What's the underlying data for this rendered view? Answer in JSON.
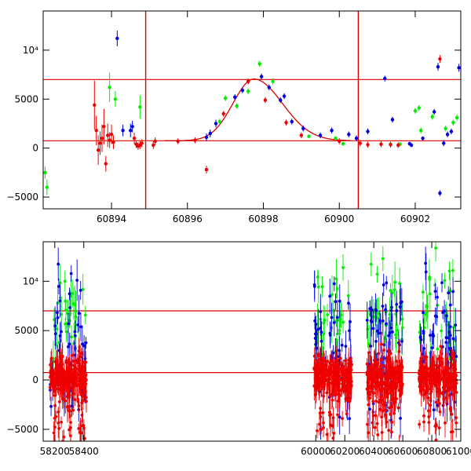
{
  "colors": {
    "green": "#00ee00",
    "blue": "#0000dd",
    "red": "#ee0000",
    "axis": "#000000",
    "marker": "#dd0000"
  },
  "chart_data": [
    {
      "type": "scatter",
      "name": "zoomed-light-curve",
      "xlim": [
        60892.2,
        60903.2
      ],
      "ylim": [
        -6200,
        14000
      ],
      "xticks": [
        60894,
        60896,
        60898,
        60900,
        60902
      ],
      "xtick_labels": [
        "60894",
        "60896",
        "60898",
        "60900",
        "60902"
      ],
      "yticks": [
        -5000,
        0,
        5000,
        10000
      ],
      "ytick_labels": [
        "−5000",
        "0",
        "5000",
        "10⁴"
      ],
      "hlines": [
        7000,
        750
      ],
      "vlines": [
        60894.9,
        60900.5
      ],
      "model_curve": {
        "baseline": 750,
        "peak": 6300,
        "center": 60897.75,
        "sigma_left": 0.55,
        "sigma_right": 0.75
      },
      "series": [
        {
          "name": "green",
          "color": "#00ee00",
          "points": [
            [
              60892.25,
              -2500,
              600
            ],
            [
              60892.3,
              -4000,
              800
            ],
            [
              60893.95,
              6200,
              1500
            ],
            [
              60894.1,
              5000,
              800
            ],
            [
              60894.75,
              4200,
              1200
            ],
            [
              60896.6,
              1500,
              300
            ],
            [
              60896.85,
              2700,
              300
            ],
            [
              60897.0,
              5100,
              300
            ],
            [
              60897.3,
              4300,
              300
            ],
            [
              60897.6,
              5800,
              300
            ],
            [
              60897.9,
              8600,
              300
            ],
            [
              60898.25,
              6800,
              300
            ],
            [
              60899.2,
              1200,
              200
            ],
            [
              60899.9,
              1000,
              200
            ],
            [
              60900.1,
              450,
              200
            ],
            [
              60901.35,
              400,
              200
            ],
            [
              60901.6,
              400,
              200
            ],
            [
              60902.0,
              3800,
              300
            ],
            [
              60902.1,
              4100,
              300
            ],
            [
              60902.15,
              1800,
              300
            ],
            [
              60902.45,
              3200,
              300
            ],
            [
              60902.8,
              2000,
              300
            ],
            [
              60903.0,
              2600,
              300
            ],
            [
              60903.1,
              3100,
              300
            ]
          ]
        },
        {
          "name": "blue",
          "color": "#0000dd",
          "points": [
            [
              60894.15,
              11200,
              800
            ],
            [
              60894.3,
              1800,
              600
            ],
            [
              60894.5,
              1800,
              700
            ],
            [
              60894.55,
              2200,
              600
            ],
            [
              60896.5,
              1100,
              400
            ],
            [
              60896.6,
              1500,
              400
            ],
            [
              60896.75,
              2500,
              400
            ],
            [
              60897.25,
              5200,
              300
            ],
            [
              60897.45,
              5900,
              300
            ],
            [
              60897.95,
              7300,
              300
            ],
            [
              60898.15,
              6200,
              300
            ],
            [
              60898.45,
              4900,
              300
            ],
            [
              60898.55,
              5300,
              300
            ],
            [
              60898.75,
              2700,
              300
            ],
            [
              60899.05,
              2000,
              300
            ],
            [
              60899.5,
              1300,
              300
            ],
            [
              60899.8,
              1800,
              300
            ],
            [
              60900.25,
              1400,
              300
            ],
            [
              60900.45,
              1000,
              300
            ],
            [
              60900.75,
              1700,
              300
            ],
            [
              60901.2,
              7100,
              300
            ],
            [
              60901.4,
              2900,
              300
            ],
            [
              60901.85,
              450,
              200
            ],
            [
              60901.9,
              300,
              200
            ],
            [
              60902.2,
              1000,
              200
            ],
            [
              60902.5,
              3700,
              300
            ],
            [
              60902.6,
              8300,
              400
            ],
            [
              60902.65,
              -4600,
              300
            ],
            [
              60902.75,
              500,
              300
            ],
            [
              60902.85,
              1400,
              300
            ],
            [
              60902.95,
              1700,
              300
            ],
            [
              60903.15,
              8200,
              400
            ]
          ]
        },
        {
          "name": "red",
          "color": "#ee0000",
          "points": [
            [
              60893.55,
              4400,
              2500
            ],
            [
              60893.6,
              1800,
              1500
            ],
            [
              60893.65,
              -200,
              1500
            ],
            [
              60893.7,
              500,
              1200
            ],
            [
              60893.75,
              1000,
              1400
            ],
            [
              60893.8,
              2200,
              1800
            ],
            [
              60893.85,
              -1600,
              800
            ],
            [
              60893.9,
              1300,
              1200
            ],
            [
              60893.95,
              800,
              800
            ],
            [
              60894.0,
              1400,
              1000
            ],
            [
              60894.05,
              600,
              700
            ],
            [
              60894.6,
              1000,
              600
            ],
            [
              60894.65,
              400,
              400
            ],
            [
              60894.7,
              200,
              400
            ],
            [
              60894.75,
              300,
              400
            ],
            [
              60894.8,
              500,
              400
            ],
            [
              60895.1,
              300,
              400
            ],
            [
              60895.15,
              700,
              400
            ],
            [
              60895.75,
              700,
              300
            ],
            [
              60896.2,
              800,
              300
            ],
            [
              60896.5,
              -2200,
              400
            ],
            [
              60896.95,
              3500,
              300
            ],
            [
              60897.6,
              6800,
              300
            ],
            [
              60898.05,
              4900,
              300
            ],
            [
              60898.6,
              2600,
              300
            ],
            [
              60899.0,
              1300,
              300
            ],
            [
              60900.0,
              700,
              300
            ],
            [
              60900.55,
              500,
              300
            ],
            [
              60900.75,
              350,
              300
            ],
            [
              60901.1,
              400,
              300
            ],
            [
              60901.35,
              350,
              300
            ],
            [
              60901.55,
              300,
              300
            ],
            [
              60902.65,
              9100,
              400
            ]
          ]
        }
      ]
    },
    {
      "type": "scatter",
      "name": "full-light-curve",
      "xlim": [
        58120,
        61000
      ],
      "ylim": [
        -6200,
        14000
      ],
      "xticks": [
        58200,
        58400,
        60000,
        60200,
        60400,
        60600,
        60800,
        61000
      ],
      "xtick_labels": [
        "58200",
        "58400",
        "60000",
        "60200",
        "60400",
        "60600",
        "60800",
        "61000"
      ],
      "yticks": [
        -5000,
        0,
        5000,
        10000
      ],
      "ytick_labels": [
        "−5000",
        "0",
        "5000",
        "10⁴"
      ],
      "hlines": [
        7000,
        750
      ],
      "seasons": [
        [
          58168,
          58418
        ],
        [
          59988,
          60248
        ],
        [
          60352,
          60602
        ],
        [
          60712,
          60972
        ]
      ],
      "series": [
        {
          "name": "green",
          "color": "#00ee00",
          "count_per_season": 30,
          "median": 6500,
          "spread": 4500
        },
        {
          "name": "blue",
          "color": "#0000dd",
          "count_per_season": 60,
          "median": 3000,
          "spread": 5500
        },
        {
          "name": "red",
          "color": "#ee0000",
          "count_per_season": 240,
          "median": 300,
          "spread": 1800
        }
      ]
    }
  ]
}
